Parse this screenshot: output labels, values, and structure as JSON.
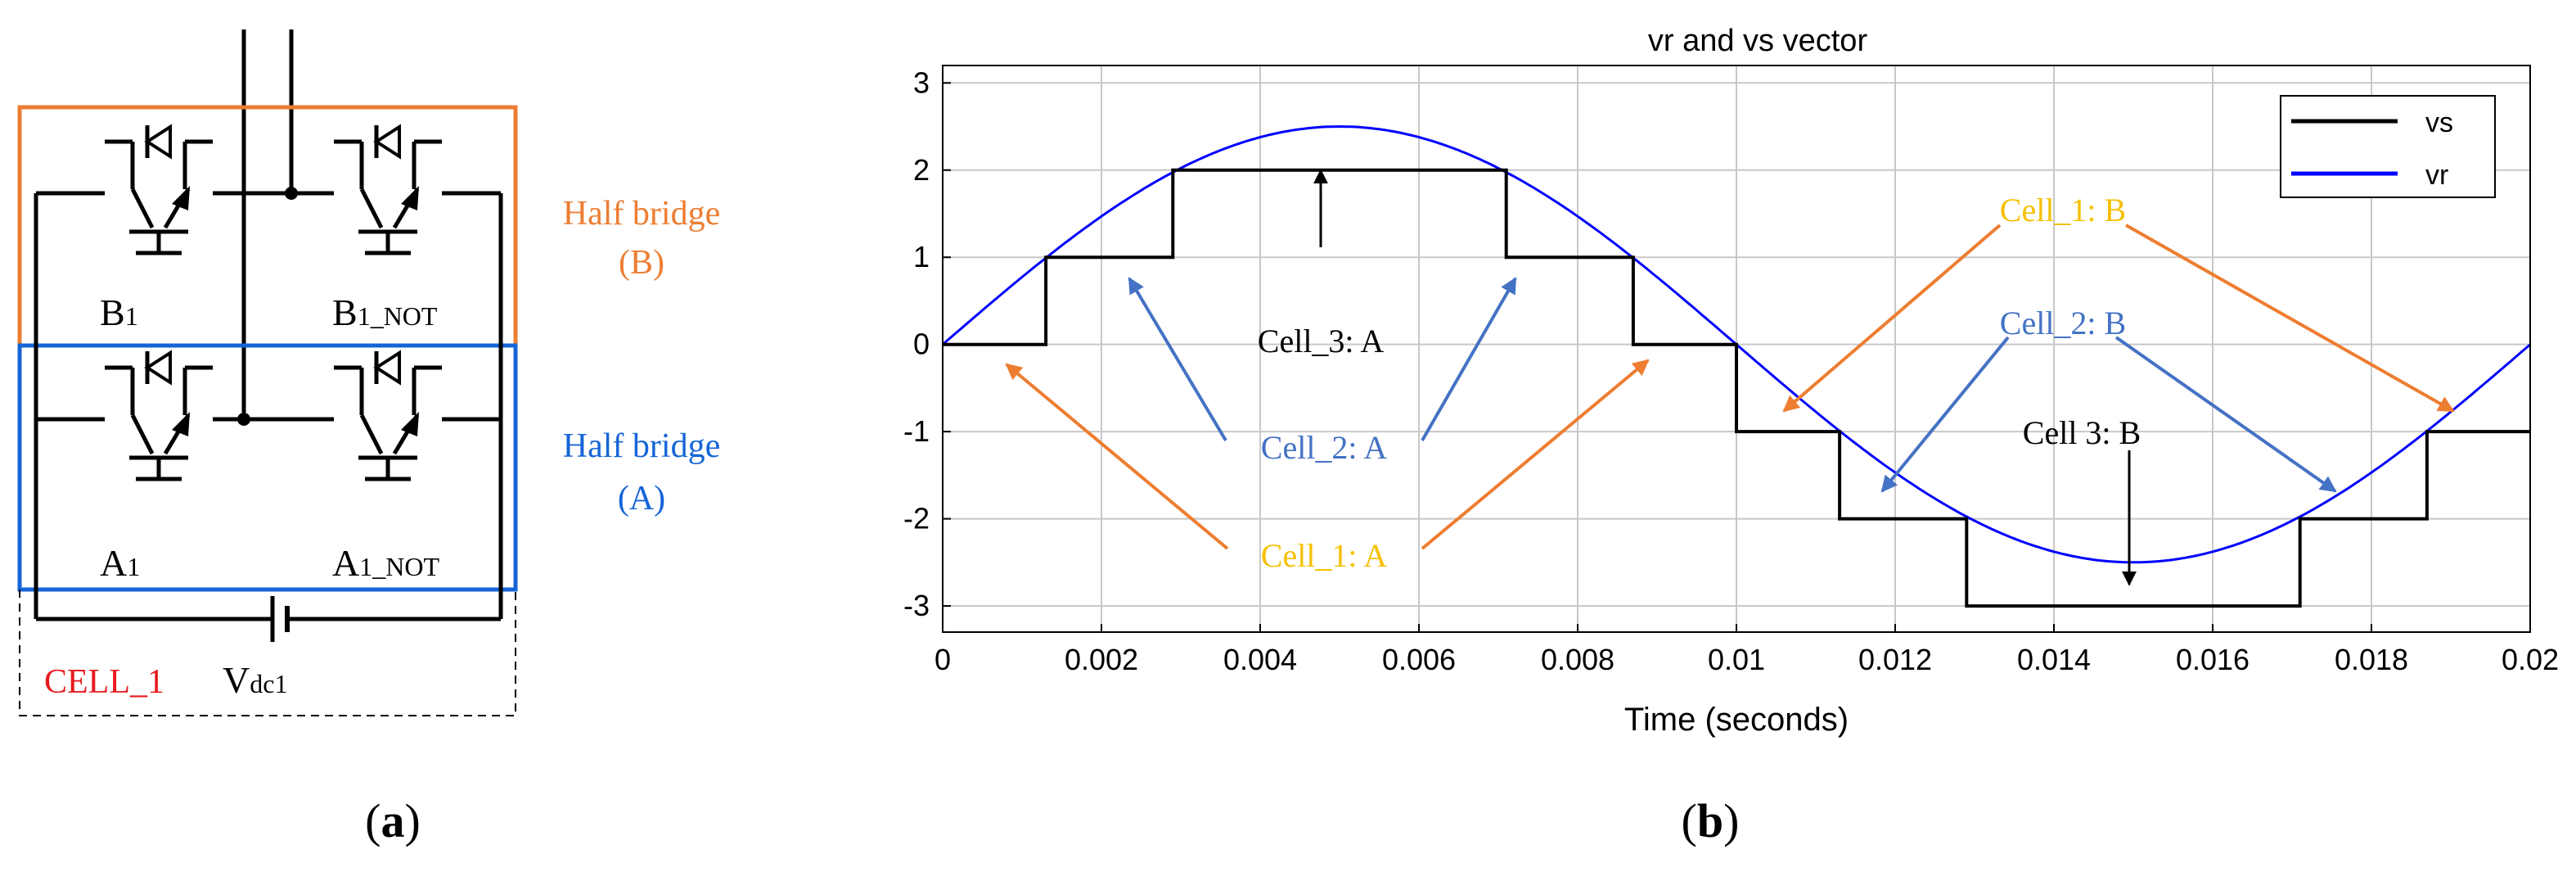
{
  "colors": {
    "orange": "#ED7D31",
    "blue": "#1565D8",
    "arrow_blue": "#4472C4",
    "yellow": "#F5C000",
    "red": "#E8191E",
    "vs": "#000000",
    "vr": "#0000FF",
    "grid": "#C8C8C8"
  },
  "panel_a": {
    "caption": "a",
    "half_bridge_b": {
      "line1": "Half bridge",
      "line2": "(B)"
    },
    "half_bridge_a": {
      "line1": "Half bridge",
      "line2": "(A)"
    },
    "switch_labels": {
      "b1": {
        "main": "B",
        "sub": "1"
      },
      "b1_not": {
        "main": "B",
        "sub": "1_NOT"
      },
      "a1": {
        "main": "A",
        "sub": "1"
      },
      "a1_not": {
        "main": "A",
        "sub": "1_NOT"
      }
    },
    "cell_label": "CELL_1",
    "vdc": {
      "main": "V",
      "sub": "dc1"
    }
  },
  "panel_b": {
    "caption": "b",
    "annotations": {
      "cell3_a": "Cell_3: A",
      "cell2_a": "Cell_2: A",
      "cell1_a": "Cell_1: A",
      "cell1_b": "Cell_1: B",
      "cell2_b": "Cell_2: B",
      "cell3_b": "Cell  3: B"
    }
  },
  "chart_data": {
    "type": "line",
    "title": "vr and vs vector",
    "xlabel": "Time (seconds)",
    "ylabel": "",
    "xlim": [
      0,
      0.02
    ],
    "ylim": [
      -3.3,
      3.2
    ],
    "xticks": [
      0,
      0.002,
      0.004,
      0.006,
      0.008,
      0.01,
      0.012,
      0.014,
      0.016,
      0.018,
      0.02
    ],
    "xtick_labels": [
      "0",
      "0.002",
      "0.004",
      "0.006",
      "0.008",
      "0.01",
      "0.012",
      "0.014",
      "0.016",
      "0.018",
      "0.02"
    ],
    "yticks": [
      -3,
      -2,
      -1,
      0,
      1,
      2,
      3
    ],
    "ytick_labels": [
      "-3",
      "-2",
      "-1",
      "0",
      "1",
      "2",
      "3"
    ],
    "grid": true,
    "legend_position": "top-right",
    "series": [
      {
        "name": "vs",
        "color": "#000000",
        "kind": "step",
        "x": [
          0,
          0.0013,
          0.0013,
          0.0029,
          0.0029,
          0.0071,
          0.0071,
          0.0087,
          0.0087,
          0.01,
          0.01,
          0.0113,
          0.0113,
          0.0129,
          0.0129,
          0.0171,
          0.0171,
          0.0187,
          0.0187,
          0.02
        ],
        "y": [
          0,
          0,
          1,
          1,
          2,
          2,
          1,
          1,
          0,
          0,
          -1,
          -1,
          -2,
          -2,
          -3,
          -3,
          -2,
          -2,
          -1,
          -1
        ]
      },
      {
        "name": "vr",
        "color": "#0000FF",
        "kind": "sine",
        "amplitude": 2.5,
        "frequency_hz": 50,
        "x": [
          0,
          0.001,
          0.002,
          0.003,
          0.004,
          0.005,
          0.006,
          0.007,
          0.008,
          0.009,
          0.01,
          0.011,
          0.012,
          0.013,
          0.014,
          0.015,
          0.016,
          0.017,
          0.018,
          0.019,
          0.02
        ],
        "y": [
          0,
          0.773,
          1.469,
          2.023,
          2.378,
          2.5,
          2.378,
          2.023,
          1.469,
          0.773,
          0,
          -0.773,
          -1.469,
          -2.023,
          -2.378,
          -2.5,
          -2.378,
          -2.023,
          -1.469,
          -0.773,
          0
        ]
      }
    ]
  }
}
